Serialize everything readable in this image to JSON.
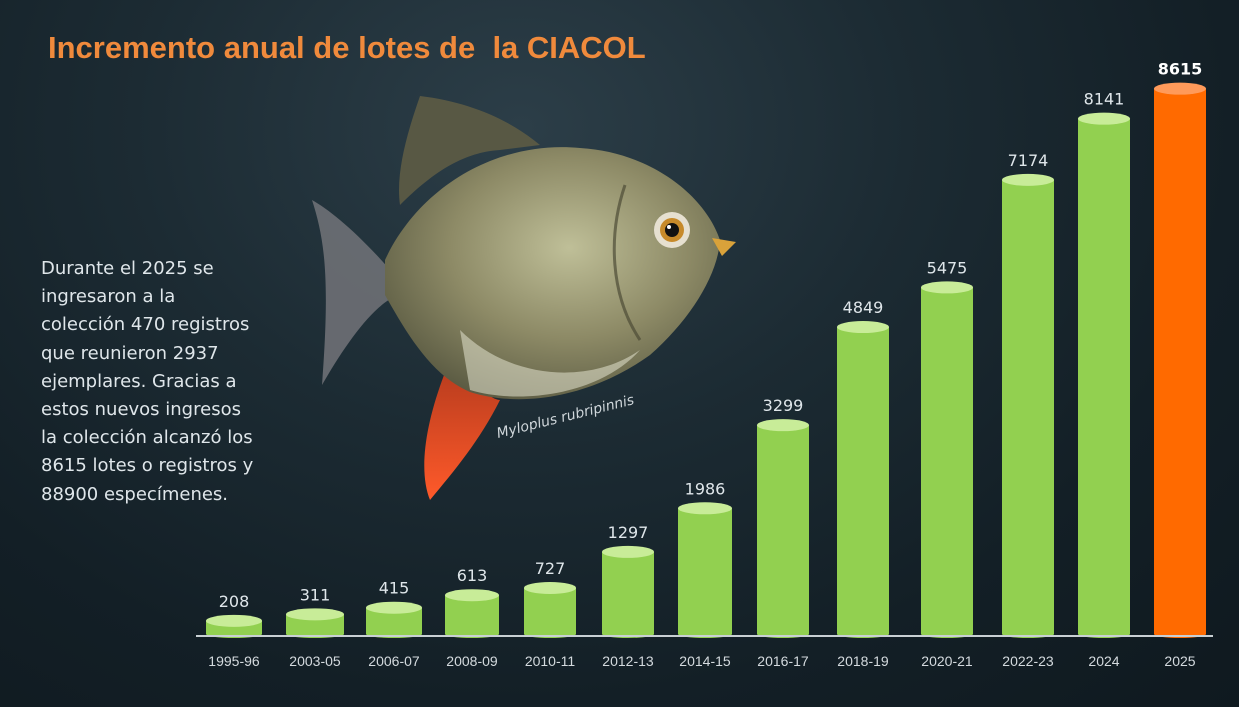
{
  "title": "Incremento anual de lotes de  la CIACOL",
  "summary": "Durante el 2025 se ingresaron a la colección 470 registros que reunieron 2937 ejemplares. Gracias a estos nuevos ingresos la colección alcanzó los 8615 lotes o registros y 88900 especímenes.",
  "fish_caption": "Myloplus rubripinnis",
  "colors": {
    "title": "#f08a3c",
    "bar": "#92d050",
    "bar_highlight": "#ff6a00",
    "axis": "#c9d0d4"
  },
  "chart_data": {
    "type": "bar",
    "title": "Incremento anual de lotes de  la CIACOL",
    "categories": [
      "1995-96",
      "2003-05",
      "2006-07",
      "2008-09",
      "2010-11",
      "2012-13",
      "2014-15",
      "2016-17",
      "2018-19",
      "2020-21",
      "2022-23",
      "2024",
      "2025"
    ],
    "values": [
      208,
      311,
      415,
      613,
      727,
      1297,
      1986,
      3299,
      4849,
      5475,
      7174,
      8141,
      8615
    ],
    "highlight": "2025",
    "ylim": [
      0,
      9000
    ],
    "grid": false,
    "legend": "none"
  }
}
